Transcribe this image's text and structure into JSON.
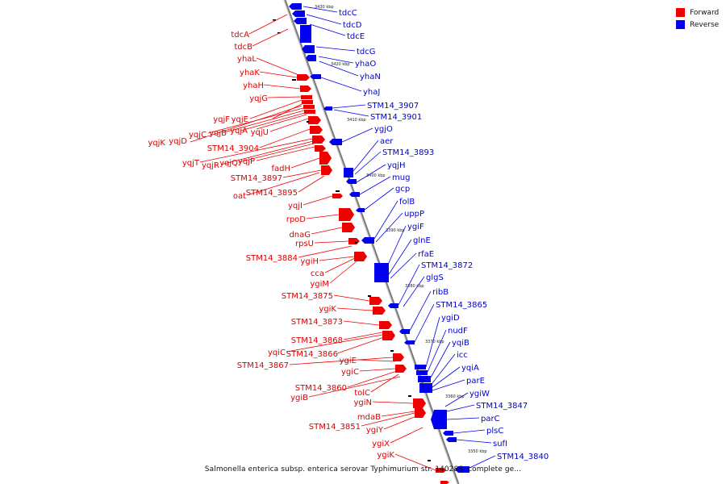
{
  "legend": {
    "forward_label": "Forward",
    "reverse_label": "Reverse",
    "forward_color": "#ee0000",
    "reverse_color": "#0000ee"
  },
  "caption": "Salmonella enterica subsp. enterica serovar Typhimurium str. 14028S, complete ge...",
  "ticks": [
    "3430 kbp",
    "3420 kbp",
    "3410 kbp",
    "3400 kbp",
    "3390 kbp",
    "3380 kbp",
    "3370 kbp",
    "3360 kbp",
    "3350 kbp"
  ],
  "forward_genes": [
    "tdcA",
    "tdcB",
    "yhaL",
    "yhaK",
    "yhaH",
    "yqjG",
    "yqjF",
    "yqjE",
    "yqjK",
    "yqjD",
    "yqjC",
    "yqjB",
    "yqjA",
    "yqjU",
    "STM14_3904",
    "yqjT",
    "yqjR",
    "yqjQ",
    "yqjP",
    "fadH",
    "STM14_3897",
    "oat",
    "STM14_3895",
    "yqjI",
    "rpoD",
    "dnaG",
    "rpsU",
    "STM14_3884",
    "ygiH",
    "cca",
    "ygiM",
    "STM14_3875",
    "ygiK",
    "STM14_3873",
    "STM14_3868",
    "yqiC",
    "STM14_3866",
    "STM14_3867",
    "ygiE",
    "ygiC",
    "STM14_3860",
    "tolC",
    "ygiB",
    "ygiN",
    "mdaB",
    "STM14_3851",
    "ygiY",
    "ygiX",
    "ygiK"
  ],
  "reverse_genes": [
    "tdcC",
    "tdcD",
    "tdcE",
    "tdcG",
    "yhaO",
    "yhaN",
    "yhaJ",
    "STM14_3907",
    "STM14_3901",
    "ygjO",
    "aer",
    "STM14_3893",
    "yqjH",
    "mug",
    "gcp",
    "folB",
    "uppP",
    "ygiF",
    "glnE",
    "rfaE",
    "STM14_3872",
    "glgS",
    "ribB",
    "STM14_3865",
    "ygiD",
    "nudF",
    "yqiB",
    "icc",
    "yqiA",
    "parE",
    "ygiW",
    "STM14_3847",
    "parC",
    "plsC",
    "sufI",
    "STM14_3840"
  ]
}
